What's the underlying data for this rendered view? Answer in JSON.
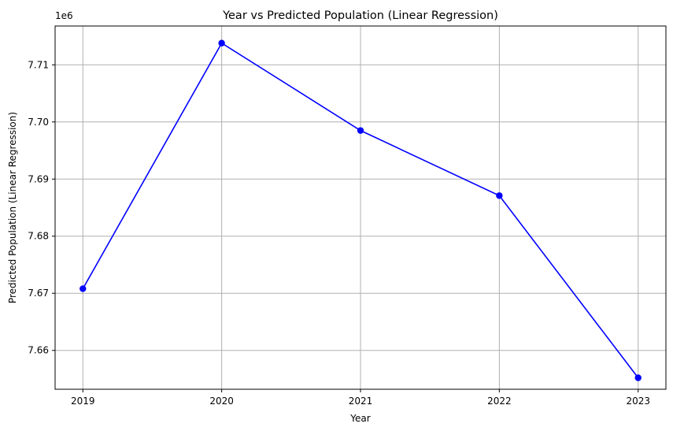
{
  "chart_data": {
    "type": "line",
    "title": "Year vs Predicted Population (Linear Regression)",
    "xlabel": "Year",
    "ylabel": "Predicted Population (Linear Regression)",
    "y_offset_label": "1e6",
    "x": [
      2019,
      2020,
      2021,
      2022,
      2023
    ],
    "x_tick_labels": [
      "2019",
      "2020",
      "2021",
      "2022",
      "2023"
    ],
    "xlim": [
      2018.8,
      2023.2
    ],
    "y_ticks": [
      7.66,
      7.67,
      7.68,
      7.69,
      7.7,
      7.71
    ],
    "y_tick_labels": [
      "7.66",
      "7.67",
      "7.68",
      "7.69",
      "7.70",
      "7.71"
    ],
    "ylim": [
      7.6532,
      7.7168
    ],
    "grid": true,
    "series": [
      {
        "values": [
          7.6708,
          7.7138,
          7.6985,
          7.6871,
          7.6552
        ],
        "color": "#0000ff",
        "marker": "circle"
      }
    ]
  }
}
